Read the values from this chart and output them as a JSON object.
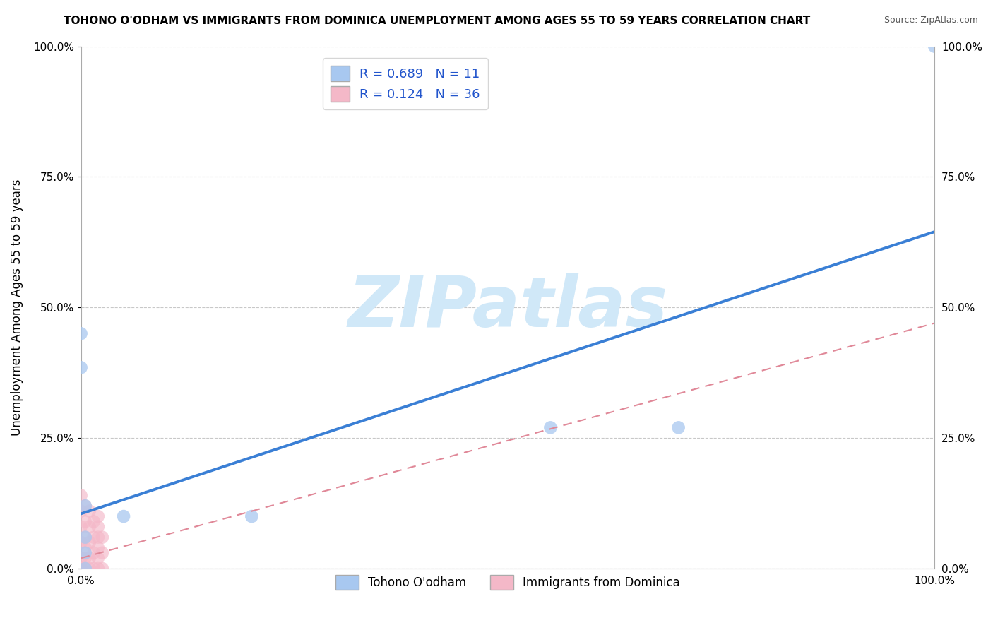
{
  "title": "TOHONO O'ODHAM VS IMMIGRANTS FROM DOMINICA UNEMPLOYMENT AMONG AGES 55 TO 59 YEARS CORRELATION CHART",
  "source": "Source: ZipAtlas.com",
  "ylabel": "Unemployment Among Ages 55 to 59 years",
  "xlim": [
    0,
    1
  ],
  "ylim": [
    0,
    1
  ],
  "xtick_labels": [
    "0.0%",
    "100.0%"
  ],
  "ytick_labels": [
    "0.0%",
    "25.0%",
    "50.0%",
    "75.0%",
    "100.0%"
  ],
  "ytick_vals": [
    0,
    0.25,
    0.5,
    0.75,
    1.0
  ],
  "xtick_vals": [
    0,
    1.0
  ],
  "grid_color": "#c8c8c8",
  "background_color": "#ffffff",
  "blue_series": {
    "label": "Tohono O'odham",
    "R": 0.689,
    "N": 11,
    "color": "#a8c8f0",
    "line_color": "#3a7fd5",
    "line_x0": 0.0,
    "line_y0": 0.105,
    "line_x1": 1.0,
    "line_y1": 0.645
  },
  "pink_series": {
    "label": "Immigrants from Dominica",
    "R": 0.124,
    "N": 36,
    "color": "#f4b8c8",
    "line_color": "#e08898",
    "line_x0": 0.0,
    "line_y0": 0.02,
    "line_x1": 1.0,
    "line_y1": 0.47
  },
  "watermark_text": "ZIPatlas",
  "watermark_color": "#d0e8f8",
  "legend_fontsize": 13,
  "title_fontsize": 11,
  "axis_label_fontsize": 12,
  "blue_scatter_x": [
    0.0,
    0.0,
    0.05,
    0.55,
    0.7,
    1.0,
    0.005,
    0.005,
    0.005,
    0.005,
    0.2
  ],
  "blue_scatter_y": [
    0.45,
    0.385,
    0.1,
    0.27,
    0.27,
    1.0,
    0.12,
    0.06,
    0.0,
    0.03,
    0.1
  ],
  "pink_scatter_x": [
    0.0,
    0.0,
    0.0,
    0.0,
    0.0,
    0.0,
    0.005,
    0.005,
    0.005,
    0.005,
    0.005,
    0.005,
    0.01,
    0.01,
    0.01,
    0.01,
    0.01,
    0.015,
    0.015,
    0.015,
    0.015,
    0.02,
    0.02,
    0.02,
    0.02,
    0.02,
    0.02,
    0.025,
    0.025,
    0.025,
    0.0,
    0.0,
    0.0,
    0.0,
    0.0,
    0.0
  ],
  "pink_scatter_y": [
    0.0,
    0.02,
    0.05,
    0.08,
    0.11,
    0.14,
    0.0,
    0.02,
    0.04,
    0.06,
    0.09,
    0.12,
    0.0,
    0.02,
    0.05,
    0.08,
    0.11,
    0.0,
    0.03,
    0.06,
    0.09,
    0.0,
    0.02,
    0.04,
    0.06,
    0.08,
    0.1,
    0.0,
    0.03,
    0.06,
    0.0,
    0.0,
    0.0,
    0.0,
    0.0,
    0.0
  ]
}
